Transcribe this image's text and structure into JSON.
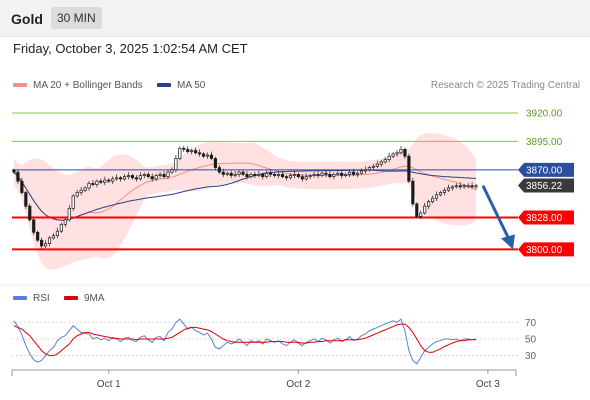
{
  "header": {
    "instrument": "Gold",
    "timeframe": "30 MIN"
  },
  "datetime": "Friday, October 3, 2025 1:02:54 AM CET",
  "legend": {
    "ma20": "MA 20 + Bollinger Bands",
    "ma50": "MA 50"
  },
  "credit": "Research © 2025 Trading Central",
  "rsi_legend": {
    "rsi": "RSI",
    "ma": "9MA"
  },
  "colors": {
    "bullish": "#1a1a1a",
    "support": "#ff0000",
    "resistance_green": "#8cc63f",
    "pivot_blue": "#2b4ea3",
    "bands": "#ffc9c9",
    "ma20": "#f3908a",
    "ma50": "#2b3f8c",
    "rsi": "#5b7ed8",
    "rsi_ma": "#e00000",
    "arrow": "#2a5fa8"
  },
  "chart_data": [
    {
      "type": "candlestick",
      "title": "Gold 30 MIN",
      "ylim": [
        3773,
        3935
      ],
      "x_ticks": [
        {
          "label": "Oct 1",
          "index": 24
        },
        {
          "label": "Oct 2",
          "index": 72
        },
        {
          "label": "Oct 3",
          "index": 120
        }
      ],
      "closes": [
        3868,
        3860,
        3850,
        3838,
        3826,
        3815,
        3808,
        3803,
        3805,
        3810,
        3812,
        3816,
        3822,
        3826,
        3836,
        3847,
        3850,
        3852,
        3854,
        3858,
        3857,
        3860,
        3859,
        3861,
        3860,
        3862,
        3863,
        3862,
        3864,
        3865,
        3863,
        3862,
        3865,
        3866,
        3864,
        3862,
        3865,
        3866,
        3864,
        3868,
        3870,
        3880,
        3889,
        3888,
        3886,
        3887,
        3885,
        3884,
        3882,
        3883,
        3880,
        3872,
        3868,
        3866,
        3867,
        3865,
        3866,
        3868,
        3866,
        3864,
        3866,
        3865,
        3866,
        3864,
        3867,
        3866,
        3865,
        3866,
        3864,
        3863,
        3865,
        3866,
        3864,
        3862,
        3864,
        3865,
        3866,
        3865,
        3867,
        3866,
        3864,
        3866,
        3867,
        3865,
        3866,
        3868,
        3866,
        3867,
        3869,
        3870,
        3872,
        3873,
        3875,
        3877,
        3879,
        3882,
        3884,
        3885,
        3888,
        3882,
        3860,
        3840,
        3829,
        3832,
        3838,
        3842,
        3845,
        3848,
        3850,
        3852,
        3854,
        3855,
        3856,
        3855,
        3856,
        3856,
        3855,
        3856
      ],
      "bb_upper_approx": [
        3880,
        3890,
        3884,
        3875,
        3882,
        3898
      ],
      "ma20_approx": [
        3863,
        3845,
        3866,
        3867,
        3866,
        3858
      ],
      "ma50_approx": [
        3851,
        3849,
        3863,
        3868,
        3867,
        3864
      ],
      "current_price": 3856.22,
      "levels": [
        {
          "value": 3920.0,
          "label": "3920.00",
          "kind": "resistance"
        },
        {
          "value": 3895.0,
          "label": "3895.00",
          "kind": "resistance"
        },
        {
          "value": 3870.0,
          "label": "3870.00",
          "kind": "pivot"
        },
        {
          "value": 3856.22,
          "label": "3856.22",
          "kind": "price"
        },
        {
          "value": 3828.0,
          "label": "3828.00",
          "kind": "support"
        },
        {
          "value": 3800.0,
          "label": "3800.00",
          "kind": "support"
        }
      ],
      "projection": {
        "from": 3856,
        "to": 3800
      }
    },
    {
      "type": "line",
      "title": "RSI",
      "ylim": [
        15,
        85
      ],
      "y_ticks": [
        70,
        50,
        30
      ],
      "series": [
        {
          "name": "RSI",
          "values": [
            72,
            65,
            55,
            42,
            32,
            25,
            22,
            24,
            30,
            36,
            40,
            48,
            52,
            54,
            60,
            66,
            62,
            58,
            57,
            56,
            50,
            52,
            49,
            51,
            48,
            52,
            50,
            47,
            51,
            52,
            48,
            47,
            52,
            54,
            49,
            46,
            52,
            53,
            48,
            58,
            62,
            70,
            74,
            68,
            62,
            64,
            60,
            58,
            55,
            57,
            50,
            40,
            38,
            42,
            46,
            44,
            46,
            50,
            46,
            42,
            48,
            46,
            48,
            44,
            50,
            48,
            46,
            48,
            44,
            42,
            46,
            49,
            45,
            42,
            46,
            48,
            50,
            47,
            51,
            49,
            45,
            49,
            51,
            47,
            49,
            53,
            48,
            50,
            54,
            56,
            60,
            62,
            64,
            66,
            68,
            70,
            72,
            70,
            74,
            60,
            36,
            24,
            20,
            28,
            36,
            40,
            44,
            47,
            48,
            50,
            50,
            49,
            50,
            48,
            50,
            50,
            49,
            50
          ]
        },
        {
          "name": "9MA",
          "values": [
            66,
            64,
            62,
            58,
            54,
            48,
            42,
            36,
            32,
            30,
            30,
            32,
            36,
            40,
            44,
            50,
            54,
            56,
            58,
            58,
            56,
            55,
            54,
            53,
            52,
            51,
            51,
            50,
            50,
            50,
            50,
            49,
            50,
            50,
            50,
            50,
            50,
            50,
            50,
            51,
            52,
            55,
            58,
            61,
            63,
            64,
            64,
            63,
            62,
            61,
            59,
            56,
            53,
            50,
            48,
            47,
            46,
            46,
            46,
            46,
            46,
            46,
            46,
            46,
            46,
            47,
            47,
            47,
            47,
            46,
            46,
            46,
            46,
            45,
            45,
            46,
            46,
            47,
            47,
            48,
            48,
            48,
            48,
            48,
            49,
            49,
            49,
            49,
            50,
            51,
            53,
            55,
            57,
            59,
            61,
            63,
            65,
            67,
            68,
            68,
            64,
            58,
            50,
            42,
            36,
            34,
            34,
            36,
            38,
            41,
            43,
            45,
            47,
            48,
            48,
            49,
            49,
            49
          ]
        }
      ]
    }
  ]
}
